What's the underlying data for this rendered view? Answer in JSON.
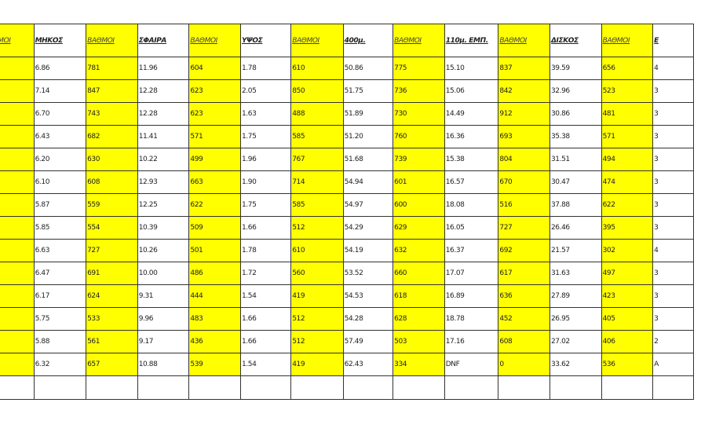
{
  "headers": [
    "ΒΑΘΜΟΙ",
    "ΜΗΚΟΣ",
    "ΒΑΘΜΟΙ",
    "ΣΦΑΙΡΑ",
    "ΒΑΘΜΟΙ",
    "ΥΨΟΣ",
    "ΒΑΘΜΟΙ",
    "400μ.",
    "ΒΑΘΜΟΙ",
    "110μ. ΕΜΠ.",
    "ΒΑΘΜΟΙ",
    "ΔΙΣΚΟΣ",
    "ΒΑΘΜΟΙ",
    "Ε"
  ],
  "rows": [
    [
      "",
      "6.86",
      "781",
      "11.96",
      "604",
      "1.78",
      "610",
      "50.86",
      "775",
      "15.10",
      "837",
      "39.59",
      "656",
      "4"
    ],
    [
      "",
      "7.14",
      "847",
      "12.28",
      "623",
      "2.05",
      "850",
      "51.75",
      "736",
      "15.06",
      "842",
      "32.96",
      "523",
      "3"
    ],
    [
      "",
      "6.70",
      "743",
      "12.28",
      "623",
      "1.63",
      "488",
      "51.89",
      "730",
      "14.49",
      "912",
      "30.86",
      "481",
      "3"
    ],
    [
      "",
      "6.43",
      "682",
      "11.41",
      "571",
      "1.75",
      "585",
      "51.20",
      "760",
      "16.36",
      "693",
      "35.38",
      "571",
      "3"
    ],
    [
      "",
      "6.20",
      "630",
      "10.22",
      "499",
      "1.96",
      "767",
      "51.68",
      "739",
      "15.38",
      "804",
      "31.51",
      "494",
      "3"
    ],
    [
      "",
      "6.10",
      "608",
      "12.93",
      "663",
      "1.90",
      "714",
      "54.94",
      "601",
      "16.57",
      "670",
      "30.47",
      "474",
      "3"
    ],
    [
      "",
      "5.87",
      "559",
      "12.25",
      "622",
      "1.75",
      "585",
      "54.97",
      "600",
      "18.08",
      "516",
      "37.88",
      "622",
      "3"
    ],
    [
      "",
      "5.85",
      "554",
      "10.39",
      "509",
      "1.66",
      "512",
      "54.29",
      "629",
      "16.05",
      "727",
      "26.46",
      "395",
      "3"
    ],
    [
      "",
      "6.63",
      "727",
      "10.26",
      "501",
      "1.78",
      "610",
      "54.19",
      "632",
      "16.37",
      "692",
      "21.57",
      "302",
      "4"
    ],
    [
      "",
      "6.47",
      "691",
      "10.00",
      "486",
      "1.72",
      "560",
      "53.52",
      "660",
      "17.07",
      "617",
      "31.63",
      "497",
      "3"
    ],
    [
      "",
      "6.17",
      "624",
      "9.31",
      "444",
      "1.54",
      "419",
      "54.53",
      "618",
      "16.89",
      "636",
      "27.89",
      "423",
      "3"
    ],
    [
      "",
      "5.75",
      "533",
      "9.96",
      "483",
      "1.66",
      "512",
      "54.28",
      "628",
      "18.78",
      "452",
      "26.95",
      "405",
      "3"
    ],
    [
      "",
      "5.88",
      "561",
      "9.17",
      "436",
      "1.66",
      "512",
      "57.49",
      "503",
      "17.16",
      "608",
      "27.02",
      "406",
      "2"
    ],
    [
      "",
      "6.32",
      "657",
      "10.88",
      "539",
      "1.54",
      "419",
      "62.43",
      "334",
      "DNF",
      "0",
      "33.62",
      "536",
      "A"
    ]
  ],
  "colors": {
    "highlight": "#ffff00",
    "plain": "#ffffff",
    "border": "#333333"
  }
}
